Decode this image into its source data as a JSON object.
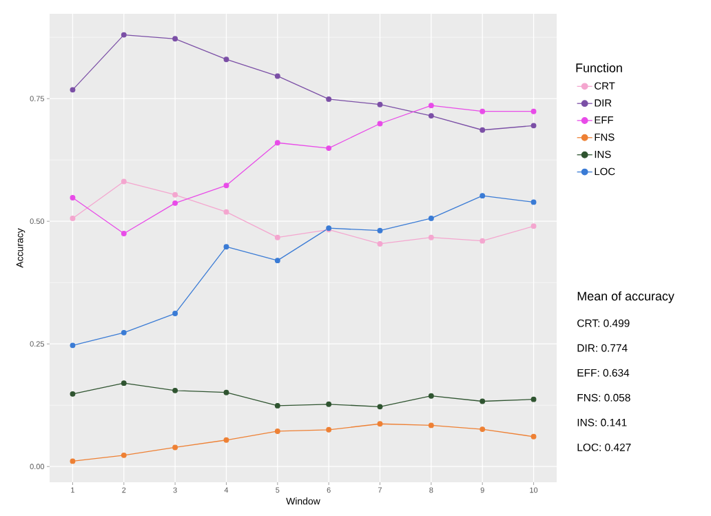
{
  "chart_data": {
    "type": "line",
    "xlabel": "Window",
    "ylabel": "Accuracy",
    "legend_title": "Function",
    "x": [
      1,
      2,
      3,
      4,
      5,
      6,
      7,
      8,
      9,
      10
    ],
    "series": [
      {
        "name": "CRT",
        "color": "#f4a6cf",
        "values": [
          0.506,
          0.581,
          0.554,
          0.519,
          0.467,
          0.483,
          0.454,
          0.467,
          0.46,
          0.49
        ]
      },
      {
        "name": "DIR",
        "color": "#7b4fa6",
        "values": [
          0.768,
          0.88,
          0.872,
          0.83,
          0.796,
          0.749,
          0.738,
          0.715,
          0.686,
          0.695
        ]
      },
      {
        "name": "EFF",
        "color": "#e84be8",
        "values": [
          0.548,
          0.475,
          0.537,
          0.573,
          0.66,
          0.649,
          0.699,
          0.736,
          0.724,
          0.724
        ]
      },
      {
        "name": "FNS",
        "color": "#ee8034",
        "values": [
          0.011,
          0.023,
          0.039,
          0.054,
          0.072,
          0.075,
          0.087,
          0.084,
          0.076,
          0.061
        ]
      },
      {
        "name": "INS",
        "color": "#2f5430",
        "values": [
          0.148,
          0.17,
          0.155,
          0.151,
          0.124,
          0.127,
          0.122,
          0.144,
          0.133,
          0.137
        ]
      },
      {
        "name": "LOC",
        "color": "#3a7bd5",
        "values": [
          0.247,
          0.273,
          0.312,
          0.448,
          0.42,
          0.486,
          0.481,
          0.506,
          0.552,
          0.539
        ]
      }
    ],
    "xlim": [
      0.55,
      10.45
    ],
    "ylim": [
      -0.032,
      0.923
    ],
    "xticks": [
      1,
      2,
      3,
      4,
      5,
      6,
      7,
      8,
      9,
      10
    ],
    "yticks": [
      {
        "value": 0,
        "label": "0.00"
      },
      {
        "value": 0.25,
        "label": "0.25"
      },
      {
        "value": 0.5,
        "label": "0.50"
      },
      {
        "value": 0.75,
        "label": "0.75"
      }
    ],
    "grid": true,
    "legend": "right",
    "marker": "circle",
    "line_style": "solid",
    "annotations": [
      "Mean of accuracy",
      "CRT: 0.499",
      "DIR: 0.774",
      "EFF: 0.634",
      "FNS: 0.058",
      "INS: 0.141",
      "LOC: 0.427"
    ]
  }
}
